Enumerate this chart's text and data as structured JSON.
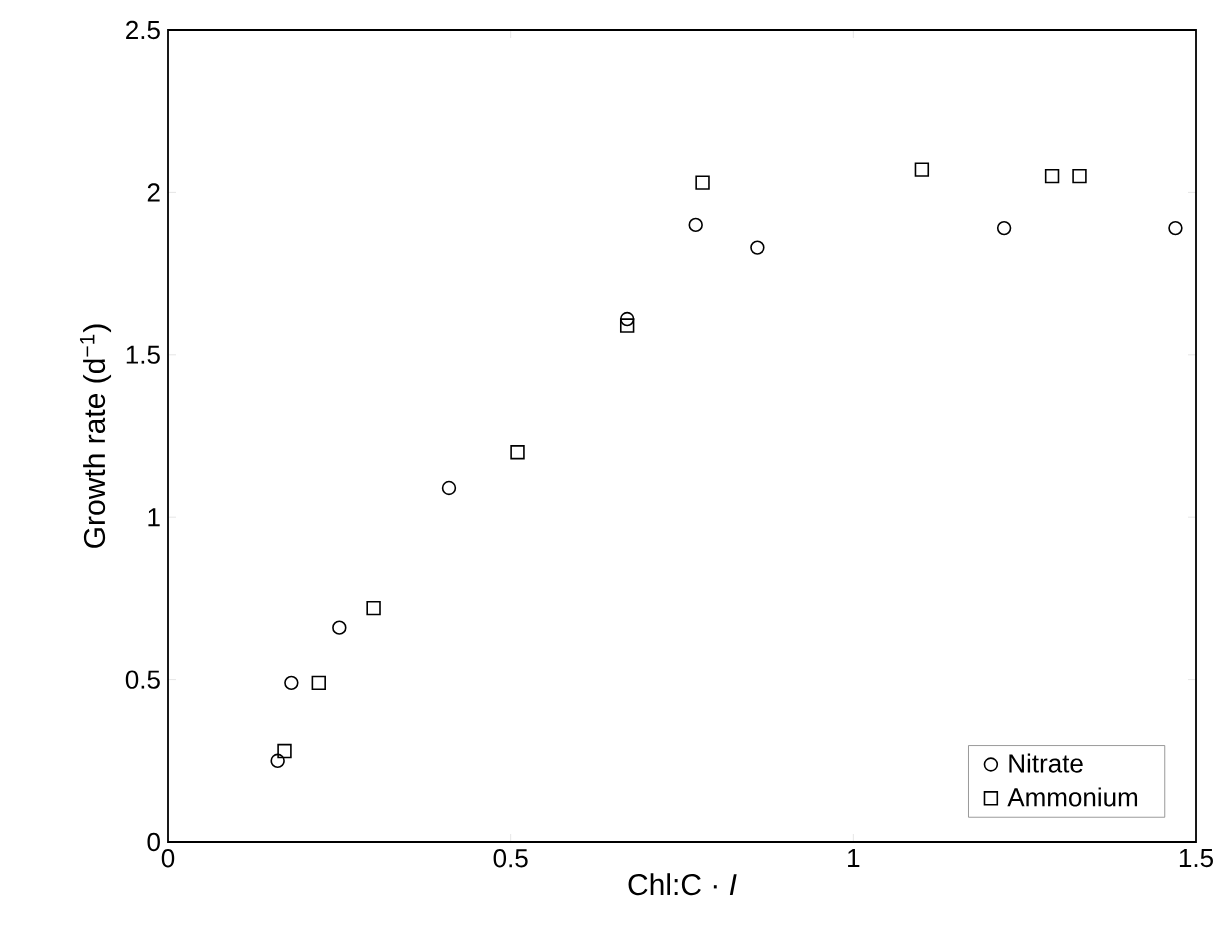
{
  "chart_data": {
    "type": "scatter",
    "xlabel": "Chl:C · *I*",
    "ylabel": "Growth rate (d$^{−1}$)",
    "xlim": [
      0,
      1.5
    ],
    "ylim": [
      0,
      2.5
    ],
    "xticks": [
      0,
      0.5,
      1,
      1.5
    ],
    "yticks": [
      0,
      0.5,
      1,
      1.5,
      2,
      2.5
    ],
    "grid": false,
    "legend": "bottom right",
    "series": [
      {
        "name": "Nitrate",
        "color": "#000000",
        "marker": "circle",
        "x": [
          0.16,
          0.18,
          0.25,
          0.41,
          0.67,
          0.77,
          0.86,
          1.22,
          1.47
        ],
        "values": [
          0.25,
          0.49,
          0.66,
          1.09,
          1.61,
          1.9,
          1.83,
          1.89,
          1.89
        ]
      },
      {
        "name": "Ammonium",
        "color": "#000000",
        "marker": "square",
        "x": [
          0.17,
          0.22,
          0.3,
          0.51,
          0.67,
          0.78,
          1.1,
          1.29,
          1.33
        ],
        "values": [
          0.28,
          0.49,
          0.72,
          1.2,
          1.59,
          2.03,
          2.07,
          2.05,
          2.05
        ]
      }
    ]
  }
}
